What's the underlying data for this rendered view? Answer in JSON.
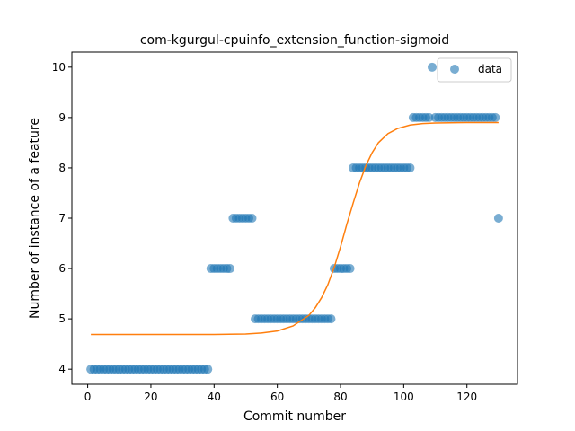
{
  "chart_data": {
    "type": "scatter",
    "title": "com-kgurgul-cpuinfo_extension_function-sigmoid",
    "xlabel": "Commit number",
    "ylabel": "Number of instance of a feature",
    "xlim": [
      -5,
      136
    ],
    "ylim": [
      3.7,
      10.3
    ],
    "xticks": [
      0,
      20,
      40,
      60,
      80,
      100,
      120
    ],
    "yticks": [
      4,
      5,
      6,
      7,
      8,
      9,
      10
    ],
    "legend": {
      "placement": "top-right",
      "entries": [
        "data"
      ]
    },
    "colors": {
      "data": "#1f77b4",
      "fit": "#ff7f0e"
    },
    "series": [
      {
        "name": "data",
        "kind": "scatter",
        "points": [
          [
            1,
            4
          ],
          [
            2,
            4
          ],
          [
            3,
            4
          ],
          [
            4,
            4
          ],
          [
            5,
            4
          ],
          [
            6,
            4
          ],
          [
            7,
            4
          ],
          [
            8,
            4
          ],
          [
            9,
            4
          ],
          [
            10,
            4
          ],
          [
            11,
            4
          ],
          [
            12,
            4
          ],
          [
            13,
            4
          ],
          [
            14,
            4
          ],
          [
            15,
            4
          ],
          [
            16,
            4
          ],
          [
            17,
            4
          ],
          [
            18,
            4
          ],
          [
            19,
            4
          ],
          [
            20,
            4
          ],
          [
            21,
            4
          ],
          [
            22,
            4
          ],
          [
            23,
            4
          ],
          [
            24,
            4
          ],
          [
            25,
            4
          ],
          [
            26,
            4
          ],
          [
            27,
            4
          ],
          [
            28,
            4
          ],
          [
            29,
            4
          ],
          [
            30,
            4
          ],
          [
            31,
            4
          ],
          [
            32,
            4
          ],
          [
            33,
            4
          ],
          [
            34,
            4
          ],
          [
            35,
            4
          ],
          [
            36,
            4
          ],
          [
            37,
            4
          ],
          [
            38,
            4
          ],
          [
            39,
            6
          ],
          [
            40,
            6
          ],
          [
            41,
            6
          ],
          [
            42,
            6
          ],
          [
            43,
            6
          ],
          [
            44,
            6
          ],
          [
            45,
            6
          ],
          [
            46,
            7
          ],
          [
            47,
            7
          ],
          [
            48,
            7
          ],
          [
            49,
            7
          ],
          [
            50,
            7
          ],
          [
            51,
            7
          ],
          [
            52,
            7
          ],
          [
            53,
            5
          ],
          [
            54,
            5
          ],
          [
            55,
            5
          ],
          [
            56,
            5
          ],
          [
            57,
            5
          ],
          [
            58,
            5
          ],
          [
            59,
            5
          ],
          [
            60,
            5
          ],
          [
            61,
            5
          ],
          [
            62,
            5
          ],
          [
            63,
            5
          ],
          [
            64,
            5
          ],
          [
            65,
            5
          ],
          [
            66,
            5
          ],
          [
            67,
            5
          ],
          [
            68,
            5
          ],
          [
            69,
            5
          ],
          [
            70,
            5
          ],
          [
            71,
            5
          ],
          [
            72,
            5
          ],
          [
            73,
            5
          ],
          [
            74,
            5
          ],
          [
            75,
            5
          ],
          [
            76,
            5
          ],
          [
            77,
            5
          ],
          [
            78,
            6
          ],
          [
            79,
            6
          ],
          [
            80,
            6
          ],
          [
            81,
            6
          ],
          [
            82,
            6
          ],
          [
            83,
            6
          ],
          [
            84,
            8
          ],
          [
            85,
            8
          ],
          [
            86,
            8
          ],
          [
            87,
            8
          ],
          [
            88,
            8
          ],
          [
            89,
            8
          ],
          [
            90,
            8
          ],
          [
            91,
            8
          ],
          [
            92,
            8
          ],
          [
            93,
            8
          ],
          [
            94,
            8
          ],
          [
            95,
            8
          ],
          [
            96,
            8
          ],
          [
            97,
            8
          ],
          [
            98,
            8
          ],
          [
            99,
            8
          ],
          [
            100,
            8
          ],
          [
            101,
            8
          ],
          [
            102,
            8
          ],
          [
            103,
            9
          ],
          [
            104,
            9
          ],
          [
            105,
            9
          ],
          [
            106,
            9
          ],
          [
            107,
            9
          ],
          [
            108,
            9
          ],
          [
            109,
            10
          ],
          [
            110,
            9
          ],
          [
            111,
            9
          ],
          [
            112,
            9
          ],
          [
            113,
            9
          ],
          [
            114,
            9
          ],
          [
            115,
            9
          ],
          [
            116,
            9
          ],
          [
            117,
            9
          ],
          [
            118,
            9
          ],
          [
            119,
            9
          ],
          [
            120,
            9
          ],
          [
            121,
            9
          ],
          [
            122,
            9
          ],
          [
            123,
            9
          ],
          [
            124,
            9
          ],
          [
            125,
            9
          ],
          [
            126,
            9
          ],
          [
            127,
            9
          ],
          [
            128,
            9
          ],
          [
            129,
            9
          ],
          [
            130,
            7
          ]
        ]
      },
      {
        "name": "",
        "kind": "line",
        "points": [
          [
            1,
            4.69
          ],
          [
            10,
            4.69
          ],
          [
            20,
            4.69
          ],
          [
            30,
            4.69
          ],
          [
            40,
            4.69
          ],
          [
            50,
            4.7
          ],
          [
            55,
            4.72
          ],
          [
            60,
            4.76
          ],
          [
            65,
            4.86
          ],
          [
            70,
            5.07
          ],
          [
            72,
            5.22
          ],
          [
            74,
            5.42
          ],
          [
            76,
            5.68
          ],
          [
            78,
            6.02
          ],
          [
            80,
            6.43
          ],
          [
            82,
            6.88
          ],
          [
            84,
            7.3
          ],
          [
            86,
            7.7
          ],
          [
            88,
            8.04
          ],
          [
            90,
            8.3
          ],
          [
            92,
            8.5
          ],
          [
            95,
            8.68
          ],
          [
            98,
            8.78
          ],
          [
            102,
            8.85
          ],
          [
            106,
            8.88
          ],
          [
            110,
            8.89
          ],
          [
            120,
            8.9
          ],
          [
            130,
            8.9
          ]
        ]
      }
    ]
  }
}
